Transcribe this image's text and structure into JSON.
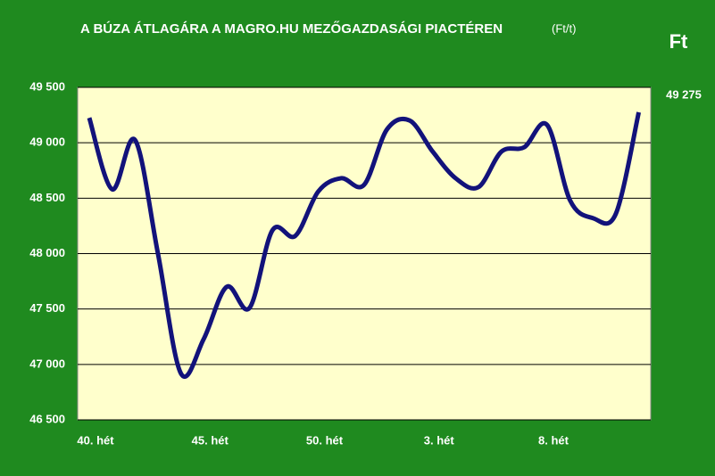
{
  "chart_data": {
    "type": "line",
    "title": "A BÚZA ÁTLAGÁRA A MAGRO.HU MEZŐGAZDASÁGI PIACTÉREN",
    "title_unit": "(Ft/t)",
    "unit": "Ft",
    "categories": [
      "40. hét",
      null,
      null,
      null,
      null,
      "45. hét",
      null,
      null,
      null,
      null,
      "50. hét",
      null,
      null,
      null,
      null,
      "3. hét",
      null,
      null,
      null,
      null,
      "8. hét",
      null,
      null,
      null,
      null
    ],
    "series": [
      {
        "name": "Búza",
        "color": "#12127a",
        "values": [
          49225,
          48580,
          49025,
          48000,
          46920,
          47230,
          47700,
          47510,
          48210,
          48160,
          48560,
          48680,
          48620,
          49120,
          49200,
          48920,
          48680,
          48600,
          48920,
          48960,
          49160,
          48480,
          48320,
          48360,
          49275
        ],
        "value_labels": [
          null,
          null,
          null,
          null,
          null,
          null,
          null,
          null,
          null,
          null,
          null,
          null,
          null,
          null,
          null,
          null,
          null,
          null,
          null,
          null,
          null,
          null,
          null,
          null,
          "49 275"
        ]
      }
    ],
    "ylim": [
      46500,
      49500
    ],
    "yticks": [
      {
        "value": 46500,
        "label": "46 500"
      },
      {
        "value": 47000,
        "label": "47 000"
      },
      {
        "value": 47500,
        "label": "47 500"
      },
      {
        "value": 48000,
        "label": "48 000"
      },
      {
        "value": 48500,
        "label": "48 500"
      },
      {
        "value": 49000,
        "label": "49 000"
      },
      {
        "value": 49500,
        "label": "49 500"
      }
    ],
    "grid": true,
    "plot_background": "#ffffcc"
  }
}
